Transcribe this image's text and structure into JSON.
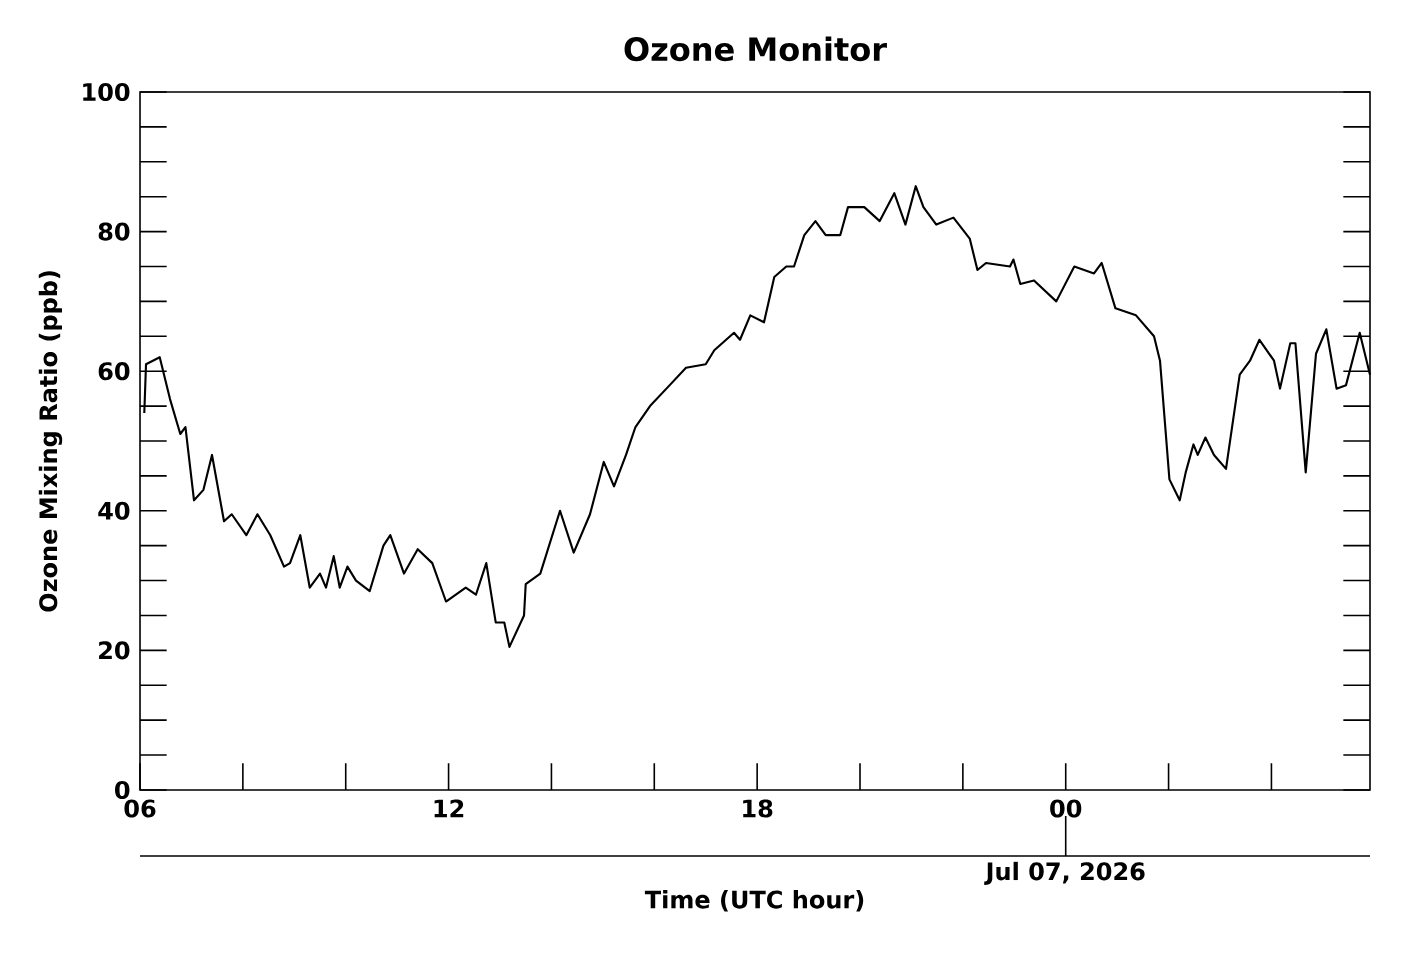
{
  "chart_data": {
    "type": "line",
    "title": "Ozone Monitor",
    "xlabel": "Time (UTC hour)",
    "ylabel": "Ozone Mixing Ratio (ppb)",
    "x": [
      "2026-07-06T06:05",
      "2026-07-06T06:07",
      "2026-07-06T06:23",
      "2026-07-06T06:35",
      "2026-07-06T06:47",
      "2026-07-06T06:53",
      "2026-07-06T07:03",
      "2026-07-06T07:14",
      "2026-07-06T07:24",
      "2026-07-06T07:38",
      "2026-07-06T07:47",
      "2026-07-06T08:04",
      "2026-07-06T08:17",
      "2026-07-06T08:32",
      "2026-07-06T08:48",
      "2026-07-06T08:55",
      "2026-07-06T09:07",
      "2026-07-06T09:18",
      "2026-07-06T09:30",
      "2026-07-06T09:37",
      "2026-07-06T09:46",
      "2026-07-06T09:53",
      "2026-07-06T10:02",
      "2026-07-06T10:12",
      "2026-07-06T10:28",
      "2026-07-06T10:44",
      "2026-07-06T10:52",
      "2026-07-06T11:08",
      "2026-07-06T11:24",
      "2026-07-06T11:41",
      "2026-07-06T11:57",
      "2026-07-06T12:20",
      "2026-07-06T12:32",
      "2026-07-06T12:44",
      "2026-07-06T12:55",
      "2026-07-06T13:05",
      "2026-07-06T13:11",
      "2026-07-06T13:28",
      "2026-07-06T13:30",
      "2026-07-06T13:47",
      "2026-07-06T14:10",
      "2026-07-06T14:26",
      "2026-07-06T14:45",
      "2026-07-06T15:01",
      "2026-07-06T15:13",
      "2026-07-06T15:27",
      "2026-07-06T15:38",
      "2026-07-06T15:55",
      "2026-07-06T16:18",
      "2026-07-06T16:37",
      "2026-07-06T17:00",
      "2026-07-06T17:10",
      "2026-07-06T17:33",
      "2026-07-06T17:40",
      "2026-07-06T17:52",
      "2026-07-06T18:08",
      "2026-07-06T18:20",
      "2026-07-06T18:34",
      "2026-07-06T18:43",
      "2026-07-06T18:55",
      "2026-07-06T19:08",
      "2026-07-06T19:20",
      "2026-07-06T19:37",
      "2026-07-06T19:46",
      "2026-07-06T20:05",
      "2026-07-06T20:23",
      "2026-07-06T20:40",
      "2026-07-06T20:53",
      "2026-07-06T21:05",
      "2026-07-06T21:14",
      "2026-07-06T21:29",
      "2026-07-06T21:49",
      "2026-07-06T22:08",
      "2026-07-06T22:17",
      "2026-07-06T22:27",
      "2026-07-06T22:55",
      "2026-07-06T22:59",
      "2026-07-06T23:07",
      "2026-07-06T23:23",
      "2026-07-06T23:49",
      "2026-07-07T00:10",
      "2026-07-07T00:33",
      "2026-07-07T00:42",
      "2026-07-07T00:58",
      "2026-07-07T01:22",
      "2026-07-07T01:43",
      "2026-07-07T01:50",
      "2026-07-07T02:01",
      "2026-07-07T02:13",
      "2026-07-07T02:20",
      "2026-07-07T02:29",
      "2026-07-07T02:34",
      "2026-07-07T02:43",
      "2026-07-07T02:53",
      "2026-07-07T03:07",
      "2026-07-07T03:23",
      "2026-07-07T03:35",
      "2026-07-07T03:46",
      "2026-07-07T04:03",
      "2026-07-07T04:10",
      "2026-07-07T04:22",
      "2026-07-07T04:28",
      "2026-07-07T04:40",
      "2026-07-07T04:52",
      "2026-07-07T05:04",
      "2026-07-07T05:16",
      "2026-07-07T05:27",
      "2026-07-07T05:43",
      "2026-07-07T05:55"
    ],
    "series": [
      {
        "color": "#000000",
        "values": [
          54,
          61,
          62,
          56,
          51,
          52,
          41.5,
          43,
          48,
          38.5,
          39.5,
          36.5,
          39.5,
          36.5,
          32,
          32.5,
          36.5,
          29,
          31,
          29,
          33.5,
          29,
          32,
          30,
          28.5,
          35,
          36.5,
          31,
          34.5,
          32.5,
          27,
          29,
          28,
          32.5,
          24,
          24,
          20.5,
          25,
          29.5,
          31,
          40,
          34,
          39.5,
          47,
          43.5,
          48,
          52,
          55,
          58,
          60.5,
          61,
          63,
          65.5,
          64.5,
          68,
          67,
          73.5,
          75,
          75,
          79.5,
          81.5,
          79.5,
          79.5,
          83.5,
          83.5,
          81.5,
          85.5,
          81,
          86.5,
          83.5,
          81,
          82,
          79,
          74.5,
          75.5,
          75,
          76,
          72.5,
          73,
          70,
          75,
          74,
          75.5,
          69,
          68,
          65,
          61.5,
          44.5,
          41.5,
          45.5,
          49.5,
          48,
          50.5,
          48,
          46,
          59.5,
          61.5,
          64.5,
          61.5,
          57.5,
          64,
          64,
          45.5,
          62.5,
          66,
          57.5,
          58,
          65.5,
          59.5
        ]
      }
    ],
    "xlim": [
      "2026-07-06T06:00",
      "2026-07-07T05:55"
    ],
    "ylim": [
      0,
      100
    ],
    "xticks": [
      {
        "value": "2026-07-06T06:00",
        "label": "06"
      },
      {
        "value": "2026-07-06T08:00",
        "label": null
      },
      {
        "value": "2026-07-06T10:00",
        "label": null
      },
      {
        "value": "2026-07-06T12:00",
        "label": "12"
      },
      {
        "value": "2026-07-06T14:00",
        "label": null
      },
      {
        "value": "2026-07-06T16:00",
        "label": null
      },
      {
        "value": "2026-07-06T18:00",
        "label": "18"
      },
      {
        "value": "2026-07-06T20:00",
        "label": null
      },
      {
        "value": "2026-07-06T22:00",
        "label": null
      },
      {
        "value": "2026-07-07T00:00",
        "label": "00"
      },
      {
        "value": "2026-07-07T02:00",
        "label": null
      },
      {
        "value": "2026-07-07T04:00",
        "label": null
      }
    ],
    "yticks": [
      0,
      {
        "value": 5,
        "label": null
      },
      {
        "value": 10,
        "label": null
      },
      {
        "value": 15,
        "label": null
      },
      20,
      {
        "value": 25,
        "label": null
      },
      {
        "value": 30,
        "label": null
      },
      {
        "value": 35,
        "label": null
      },
      40,
      {
        "value": 45,
        "label": null
      },
      {
        "value": 50,
        "label": null
      },
      {
        "value": 55,
        "label": null
      },
      60,
      {
        "value": 65,
        "label": null
      },
      {
        "value": 70,
        "label": null
      },
      {
        "value": 75,
        "label": null
      },
      80,
      {
        "value": 85,
        "label": null
      },
      {
        "value": 90,
        "label": null
      },
      {
        "value": 95,
        "label": null
      },
      100
    ],
    "annotations": [
      "Jul 07, 2026"
    ],
    "marker": "none",
    "line_style": "solid"
  }
}
